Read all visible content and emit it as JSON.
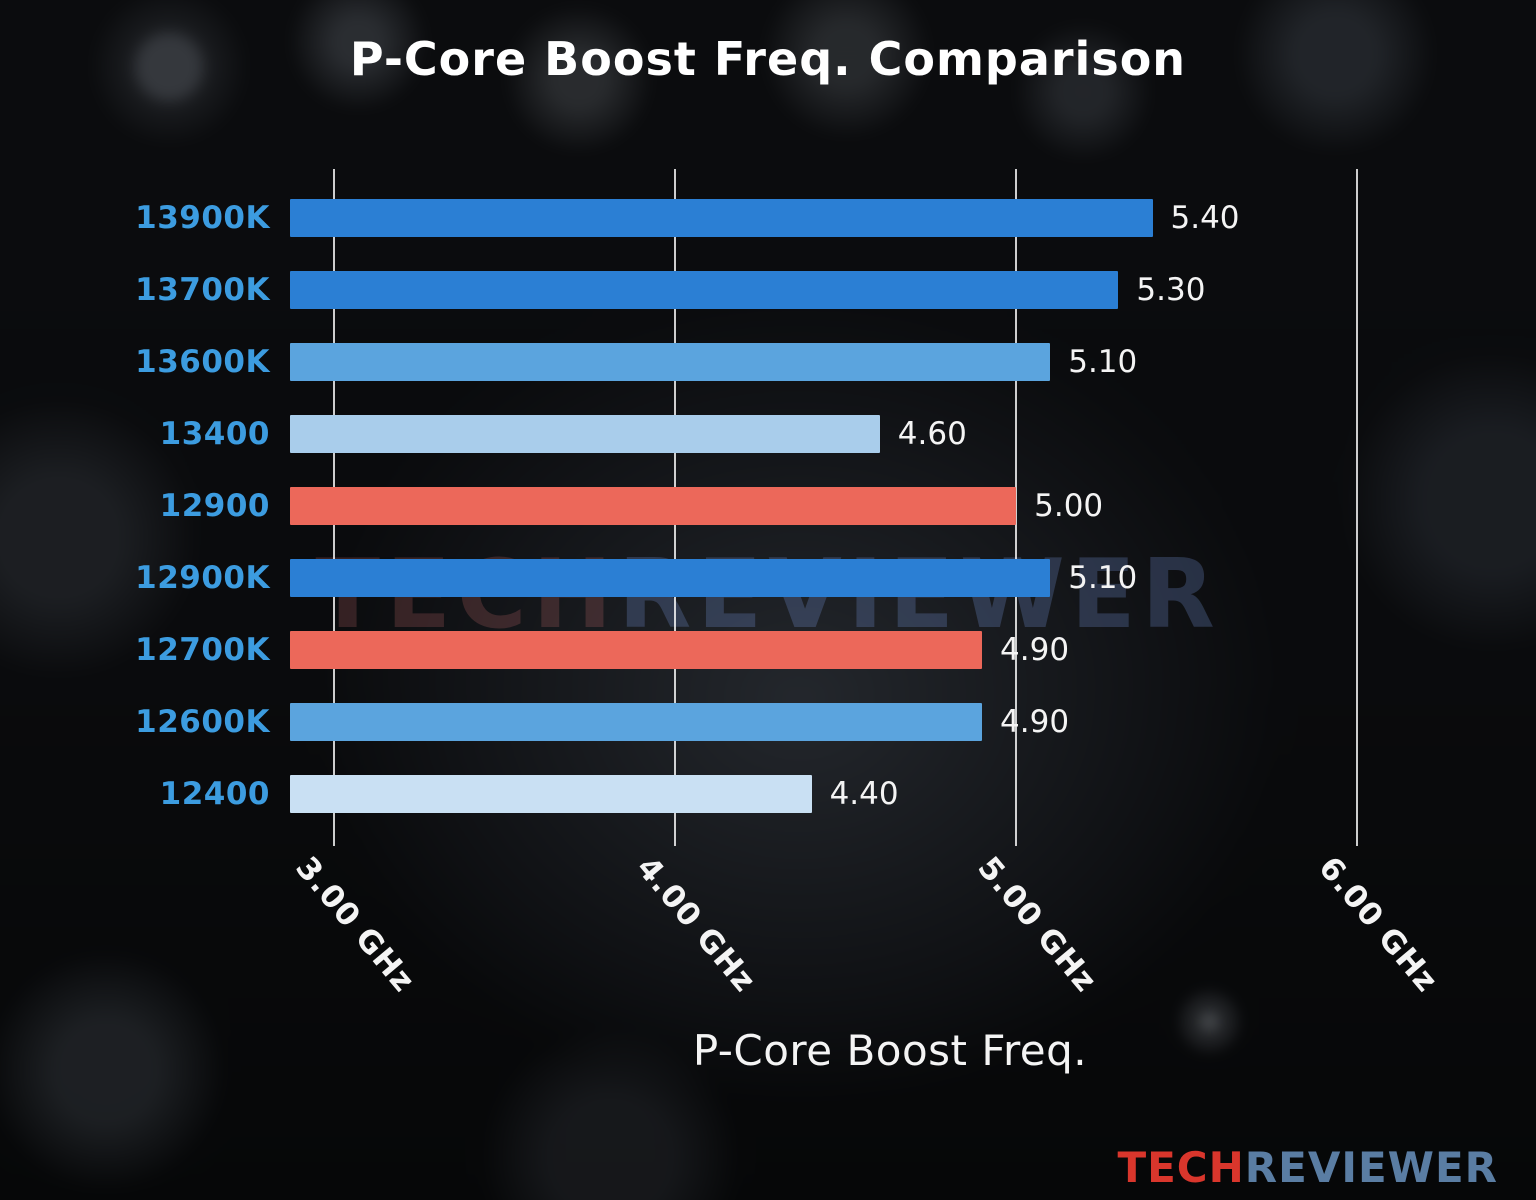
{
  "title": "P-Core Boost Freq. Comparison",
  "watermark": {
    "part1": "TECH",
    "part2": "REVIEWER"
  },
  "logo": {
    "part1": "TECH",
    "part2": "REVIEWER"
  },
  "chart_data": {
    "type": "bar",
    "orientation": "horizontal",
    "title": "P-Core Boost Freq. Comparison",
    "xlabel": "P-Core Boost Freq.",
    "categories": [
      "13900K",
      "13700K",
      "13600K",
      "13400",
      "12900",
      "12900K",
      "12700K",
      "12600K",
      "12400"
    ],
    "values": [
      5.4,
      5.3,
      5.1,
      4.6,
      5.0,
      5.1,
      4.9,
      4.9,
      4.4
    ],
    "value_labels": [
      "5.40",
      "5.30",
      "5.10",
      "4.60",
      "5.00",
      "5.10",
      "4.90",
      "4.90",
      "4.40"
    ],
    "bar_colors": [
      "#2b7fd4",
      "#2b7fd4",
      "#5ba4de",
      "#a9cdeb",
      "#ec685a",
      "#2b7fd4",
      "#ec685a",
      "#5ba4de",
      "#c9e0f3"
    ],
    "category_label_color": "#3c9ce0",
    "value_label_color": "#f4f4f4",
    "gridline_color": "rgba(255,255,255,0.8)",
    "grid": true,
    "legend": "none",
    "x_ticks": [
      3,
      4,
      5,
      6
    ],
    "x_tick_labels": [
      "3.00 GHz",
      "4.00 GHz",
      "5.00 GHz",
      "6.00 GHz"
    ],
    "xlim": [
      2.87,
      6.39
    ]
  }
}
